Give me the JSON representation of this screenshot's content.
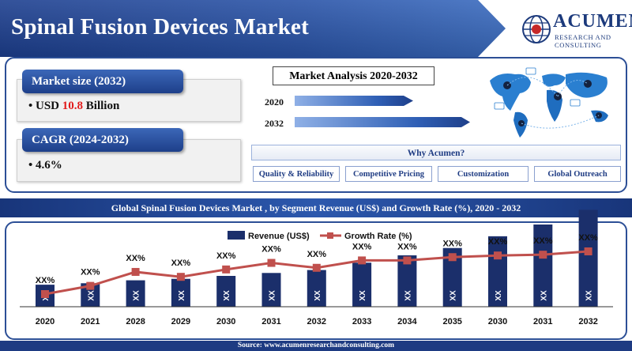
{
  "header": {
    "title": "Spinal Fusion Devices Market",
    "logo_name": "ACUMEN",
    "logo_sub": "RESEARCH AND CONSULTING"
  },
  "metrics": {
    "market_size_label": "Market size (2032)",
    "market_size_prefix": "• USD ",
    "market_size_value": "10.8",
    "market_size_suffix": " Billion",
    "cagr_label": "CAGR (2024-2032)",
    "cagr_value": "• 4.6%"
  },
  "analysis": {
    "title": "Market Analysis 2020-2032",
    "years": [
      "2020",
      "2032"
    ]
  },
  "why": {
    "title": "Why Acumen?",
    "items": [
      "Quality & Reliability",
      "Competitive Pricing",
      "Customization",
      "Global Outreach"
    ]
  },
  "segment_title": "Global Spinal Fusion Devices Market , by Segment Revenue (US$) and Growth Rate (%), 2020 - 2032",
  "source": "Source: www.acumenresearchandconsulting.com",
  "colors": {
    "primary": "#1e3f8a",
    "bar": "#1b2f6b",
    "line": "#c0504d",
    "highlight": "#e11b1b"
  },
  "chart_data": {
    "type": "bar",
    "legend": [
      "Revenue (US$)",
      "Growth Rate (%)"
    ],
    "legend_position": "top-center",
    "categories": [
      "2020",
      "2021",
      "2028",
      "2029",
      "2030",
      "2031",
      "2032",
      "2033",
      "2034",
      "2035",
      "2030",
      "2031",
      "2032"
    ],
    "series": [
      {
        "name": "Revenue (US$)",
        "type": "bar",
        "values": [
          15,
          16,
          18,
          19,
          21,
          23,
          25,
          30,
          35,
          40,
          48,
          56,
          66
        ],
        "labels": [
          "XX",
          "XX",
          "XX",
          "XX",
          "XX",
          "XX",
          "XX",
          "XX",
          "XX",
          "XX",
          "XX",
          "XX",
          "XX"
        ]
      },
      {
        "name": "Growth Rate (%)",
        "type": "line",
        "values": [
          10,
          20,
          37,
          31,
          40,
          48,
          42,
          51,
          51,
          55,
          57,
          58,
          62
        ],
        "labels": [
          "XX%",
          "XX%",
          "XX%",
          "XX%",
          "XX%",
          "XX%",
          "XX%",
          "XX%",
          "XX%",
          "XX%",
          "XX%",
          "XX%",
          "XX%"
        ]
      }
    ],
    "ylim": [
      0,
      70
    ],
    "grid": false
  }
}
